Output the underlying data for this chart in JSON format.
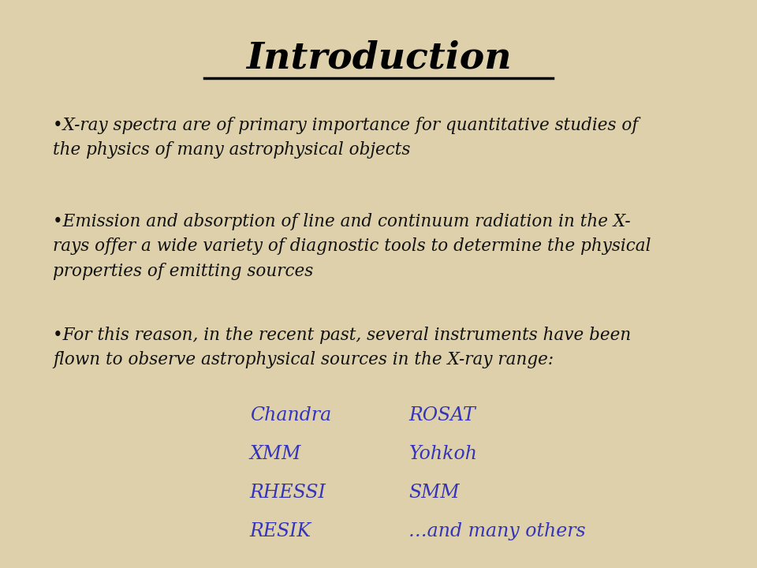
{
  "title": "Introduction",
  "title_fontsize": 34,
  "title_color": "#000000",
  "background_color": "#ddd0aa",
  "text_color": "#111111",
  "blue_color": "#3333bb",
  "bullet_fontsize": 15.5,
  "bullet1": "•X-ray spectra are of primary importance for quantitative studies of\nthe physics of many astrophysical objects",
  "bullet2": "•Emission and absorption of line and continuum radiation in the X-\nrays offer a wide variety of diagnostic tools to determine the physical\nproperties of emitting sources",
  "bullet3": "•For this reason, in the recent past, several instruments have been\nflown to observe astrophysical sources in the X-ray range:",
  "col1": [
    "Chandra",
    "XMM",
    "RHESSI",
    "RESIK"
  ],
  "col2": [
    "ROSAT",
    "Yohkoh",
    "SMM",
    "…and many others"
  ],
  "instrument_fontsize": 17
}
